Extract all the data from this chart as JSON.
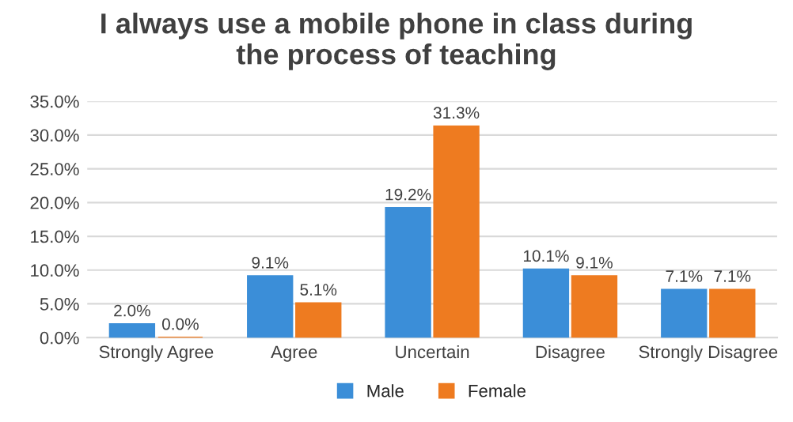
{
  "chart_data": {
    "type": "bar",
    "title": "I always use a mobile phone in class during\nthe process of teaching",
    "categories": [
      "Strongly Agree",
      "Agree",
      "Uncertain",
      "Disagree",
      "Strongly Disagree"
    ],
    "series": [
      {
        "name": "Male",
        "color": "#3b8ed8",
        "values": [
          2.0,
          9.1,
          19.2,
          10.1,
          7.1
        ],
        "value_labels": [
          "2.0%",
          "9.1%",
          "19.2%",
          "10.1%",
          "7.1%"
        ]
      },
      {
        "name": "Female",
        "color": "#ee7b20",
        "values": [
          0.0,
          5.1,
          31.3,
          9.1,
          7.1
        ],
        "value_labels": [
          "0.0%",
          "5.1%",
          "31.3%",
          "9.1%",
          "7.1%"
        ]
      }
    ],
    "ylim": [
      0,
      35
    ],
    "yticks": [
      {
        "value": 0,
        "label": "0.0%"
      },
      {
        "value": 5,
        "label": "5.0%"
      },
      {
        "value": 10,
        "label": "10.0%"
      },
      {
        "value": 15,
        "label": "15.0%"
      },
      {
        "value": 20,
        "label": "20.0%"
      },
      {
        "value": 25,
        "label": "25.0%"
      },
      {
        "value": 30,
        "label": "30.0%"
      },
      {
        "value": 35,
        "label": "35.0%"
      }
    ],
    "grid": "y",
    "legend": "bottom"
  }
}
